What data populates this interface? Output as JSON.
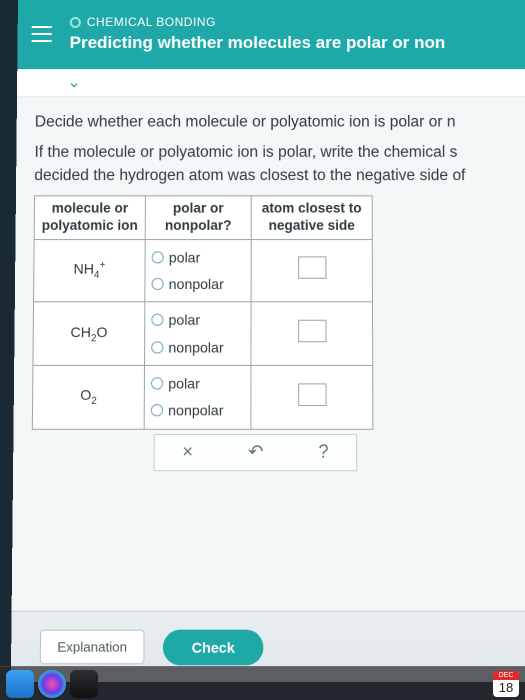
{
  "header": {
    "category": "CHEMICAL BONDING",
    "title": "Predicting whether molecules are polar or non"
  },
  "instructions": {
    "line1": "Decide whether each molecule or polyatomic ion is polar or n",
    "line2": "If the molecule or polyatomic ion is polar, write the chemical s",
    "line3": "decided the hydrogen atom was closest to the negative side of"
  },
  "table": {
    "headers": {
      "col1a": "molecule or",
      "col1b": "polyatomic ion",
      "col2a": "polar or",
      "col2b": "nonpolar?",
      "col3a": "atom closest to",
      "col3b": "negative side"
    },
    "options": {
      "polar": "polar",
      "nonpolar": "nonpolar"
    },
    "rows": [
      {
        "formula_html": "NH<sub>4</sub><sup>+</sup>"
      },
      {
        "formula_html": "CH<sub>2</sub>O"
      },
      {
        "formula_html": "O<sub>2</sub>"
      }
    ]
  },
  "toolbar": {
    "x": "×",
    "undo": "↶",
    "help": "?"
  },
  "buttons": {
    "explanation": "Explanation",
    "check": "Check"
  },
  "dock": {
    "cal_month": "DEC",
    "cal_day": "18"
  },
  "style": {
    "header_bg": "#1ea8a8",
    "page_bg": "#f4f7f8",
    "border": "#9aa6ab",
    "radio_border": "#6fa8bf",
    "check_bg": "#1ea8a8"
  }
}
